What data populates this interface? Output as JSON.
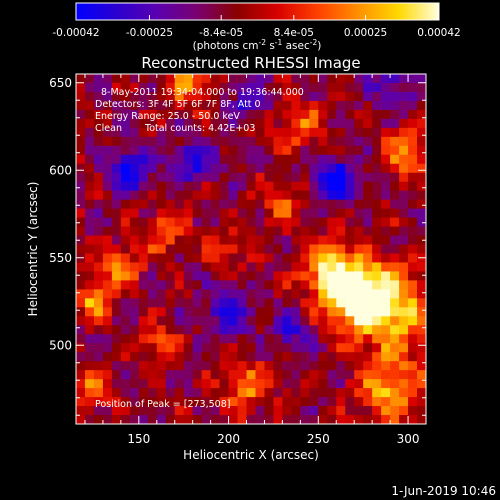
{
  "chart_data": {
    "type": "heatmap",
    "title": "Reconstructed RHESSI Image",
    "xlabel": "Heliocentric X (arcsec)",
    "ylabel": "Heliocentric Y (arcsec)",
    "xlim": [
      115,
      310
    ],
    "ylim": [
      455,
      655
    ],
    "xticks": [
      150,
      200,
      250,
      300
    ],
    "yticks": [
      500,
      550,
      600,
      650
    ],
    "colorbar": {
      "range": [
        -0.00042,
        0.00042
      ],
      "tick_values": [
        -0.00042,
        -0.00025,
        -8.4e-05,
        8.4e-05,
        0.00025,
        0.00042
      ],
      "tick_labels": [
        "-0.00042",
        "-0.00025",
        "-8.4e-05",
        "8.4e-05",
        "0.00025",
        "0.00042"
      ],
      "label": "(photons cm",
      "label_sup1": "-2",
      "label_mid": " s",
      "label_sup2": "-1",
      "label_mid2": " asec",
      "label_sup3": "-2",
      "label_end": ")",
      "colormap": [
        "#0000ff",
        "#2a00d0",
        "#5a00b0",
        "#7a0070",
        "#8a0000",
        "#d80000",
        "#ff4000",
        "#ff9000",
        "#ffd800",
        "#ffffe0"
      ]
    },
    "annotations": {
      "time_range": "8-May-2011 19:34:04.000 to 19:36:44.000",
      "detectors": "Detectors: 3F 4F 5F 6F 7F 8F, Att 0",
      "energy": "Energy Range: 25.0 - 50.0 keV",
      "method": "Clean",
      "counts": "Total counts: 4.42E+03",
      "peak": "Position of Peak = [273,508]"
    },
    "peak_position": [
      273,
      508
    ],
    "features": [
      {
        "x": 270,
        "y": 530,
        "level": 1.0,
        "sigma": 14
      },
      {
        "x": 290,
        "y": 520,
        "level": 0.85,
        "sigma": 16
      },
      {
        "x": 255,
        "y": 545,
        "level": 0.7,
        "sigma": 10
      },
      {
        "x": 290,
        "y": 475,
        "level": 0.75,
        "sigma": 12
      },
      {
        "x": 210,
        "y": 475,
        "level": 0.55,
        "sigma": 10
      },
      {
        "x": 125,
        "y": 525,
        "level": 0.7,
        "sigma": 7
      },
      {
        "x": 140,
        "y": 545,
        "level": 0.6,
        "sigma": 8
      },
      {
        "x": 180,
        "y": 650,
        "level": 0.65,
        "sigma": 9
      },
      {
        "x": 300,
        "y": 610,
        "level": 0.6,
        "sigma": 10
      },
      {
        "x": 240,
        "y": 625,
        "level": 0.5,
        "sigma": 9
      },
      {
        "x": 165,
        "y": 565,
        "level": 0.55,
        "sigma": 8
      },
      {
        "x": 160,
        "y": 500,
        "level": 0.45,
        "sigma": 8
      },
      {
        "x": 230,
        "y": 580,
        "level": 0.45,
        "sigma": 8
      },
      {
        "x": 125,
        "y": 475,
        "level": 0.5,
        "sigma": 8
      },
      {
        "x": 200,
        "y": 555,
        "level": 0.4,
        "sigma": 7
      },
      {
        "x": 145,
        "y": 600,
        "level": -0.75,
        "sigma": 8
      },
      {
        "x": 260,
        "y": 595,
        "level": -0.8,
        "sigma": 9
      },
      {
        "x": 200,
        "y": 520,
        "level": -0.65,
        "sigma": 9
      },
      {
        "x": 235,
        "y": 510,
        "level": -0.55,
        "sigma": 8
      },
      {
        "x": 180,
        "y": 605,
        "level": -0.6,
        "sigma": 8
      },
      {
        "x": 290,
        "y": 650,
        "level": -0.5,
        "sigma": 8
      },
      {
        "x": 210,
        "y": 640,
        "level": -0.5,
        "sigma": 8
      }
    ]
  },
  "footer": {
    "date": "1-Jun-2019 10:46"
  }
}
